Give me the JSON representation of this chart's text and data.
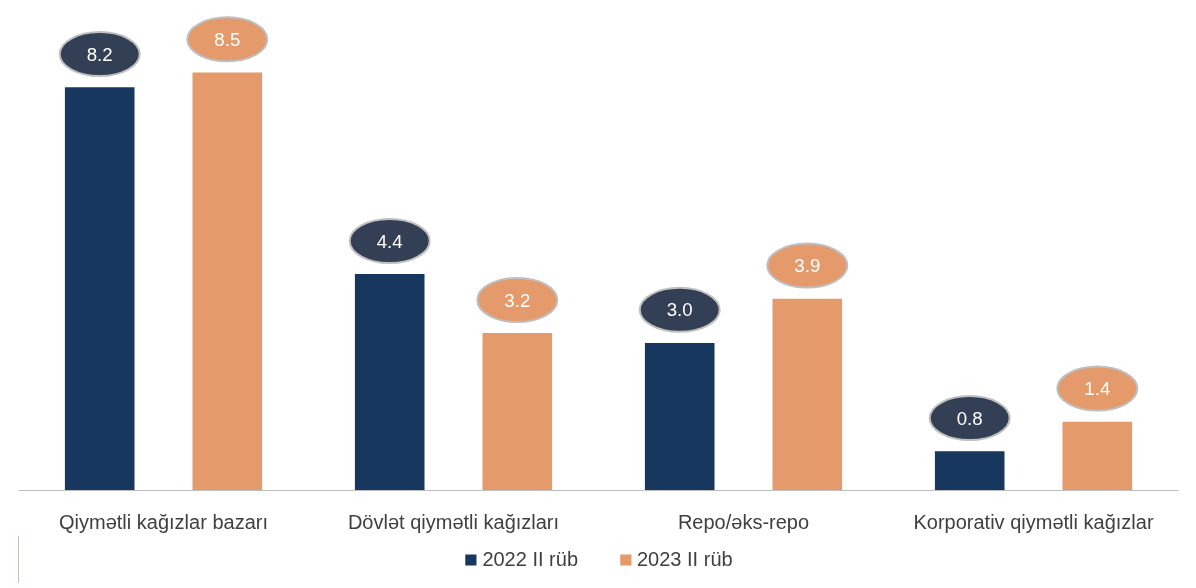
{
  "chart_data": {
    "type": "bar",
    "categories": [
      "Qiymətli kağızlar bazarı",
      "Dövlət qiymətli kağızları",
      "Repo/əks-repo",
      "Korporativ qiymətli kağızlar"
    ],
    "series": [
      {
        "name": "2022 II rüb",
        "color": "#17375e",
        "values": [
          8.2,
          4.4,
          3.0,
          0.8
        ],
        "value_labels": [
          "8.2",
          "4.4",
          "3.0",
          "0.8"
        ]
      },
      {
        "name": "2023 II rüb",
        "color": "#e49a6a",
        "values": [
          8.5,
          3.2,
          3.9,
          1.4
        ],
        "value_labels": [
          "8.5",
          "3.2",
          "3.9",
          "1.4"
        ]
      }
    ],
    "legend": "bottom",
    "grid": false
  }
}
